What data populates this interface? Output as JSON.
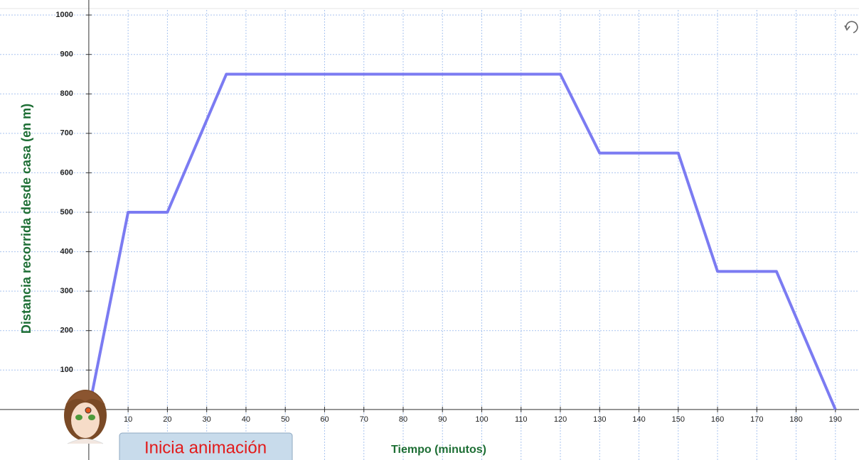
{
  "chart_data": {
    "type": "line",
    "x": [
      0,
      10,
      20,
      35,
      120,
      130,
      150,
      160,
      175,
      190
    ],
    "values": [
      0,
      500,
      500,
      850,
      850,
      650,
      650,
      350,
      350,
      0
    ],
    "color": "#7b7bf2",
    "xlim": [
      -22.6,
      196
    ],
    "ylim": [
      -128,
      1038
    ],
    "xticks": [
      10,
      20,
      30,
      40,
      50,
      60,
      70,
      80,
      90,
      100,
      110,
      120,
      130,
      140,
      150,
      160,
      170,
      180,
      190
    ],
    "yticks": [
      100,
      200,
      300,
      400,
      500,
      600,
      700,
      800,
      900,
      1000
    ],
    "grid": true,
    "xlabel": "Tiempo (minutos)",
    "ylabel": "Distancia recorrida desde casa (en m)",
    "button": "Inicia animación"
  }
}
